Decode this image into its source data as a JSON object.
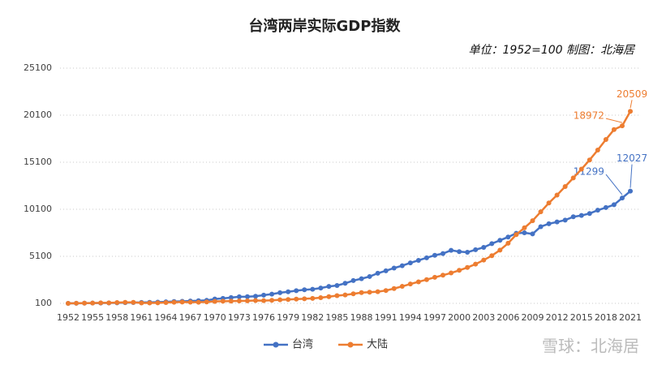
{
  "chart_data": {
    "type": "line",
    "title": "台湾两岸实际GDP指数",
    "subtitle": "单位：1952=100  制图：北海居",
    "watermark": "雪球：北海居",
    "x": [
      1952,
      1953,
      1954,
      1955,
      1956,
      1957,
      1958,
      1959,
      1960,
      1961,
      1962,
      1963,
      1964,
      1965,
      1966,
      1967,
      1968,
      1969,
      1970,
      1971,
      1972,
      1973,
      1974,
      1975,
      1976,
      1977,
      1978,
      1979,
      1980,
      1981,
      1982,
      1983,
      1984,
      1985,
      1986,
      1987,
      1988,
      1989,
      1990,
      1991,
      1992,
      1993,
      1994,
      1995,
      1996,
      1997,
      1998,
      1999,
      2000,
      2001,
      2002,
      2003,
      2004,
      2005,
      2006,
      2007,
      2008,
      2009,
      2010,
      2011,
      2012,
      2013,
      2014,
      2015,
      2016,
      2017,
      2018,
      2019,
      2020,
      2021
    ],
    "xlim": [
      1952,
      2021
    ],
    "xticks": [
      1952,
      1955,
      1958,
      1961,
      1964,
      1967,
      1970,
      1973,
      1976,
      1979,
      1982,
      1985,
      1988,
      1991,
      1994,
      1997,
      2000,
      2003,
      2006,
      2009,
      2012,
      2015,
      2018,
      2021
    ],
    "ylim": [
      100,
      25100
    ],
    "yticks": [
      100,
      5100,
      10100,
      15100,
      20100,
      25100
    ],
    "grid": true,
    "labeled_x": [
      2020,
      2021
    ],
    "series": [
      {
        "name": "台湾",
        "color": "#4472c4",
        "values": [
          100,
          109,
          120,
          130,
          137,
          147,
          157,
          171,
          182,
          195,
          211,
          231,
          260,
          290,
          316,
          351,
          383,
          418,
          560,
          630,
          710,
          800,
          810,
          850,
          970,
          1080,
          1230,
          1330,
          1450,
          1540,
          1600,
          1730,
          1900,
          2000,
          2230,
          2520,
          2720,
          2950,
          3300,
          3560,
          3850,
          4100,
          4400,
          4670,
          4940,
          5210,
          5390,
          5740,
          5600,
          5530,
          5800,
          6050,
          6450,
          6800,
          7150,
          7550,
          7600,
          7480,
          8250,
          8560,
          8750,
          8950,
          9300,
          9440,
          9650,
          10000,
          10280,
          10580,
          11299,
          12027
        ]
      },
      {
        "name": "大陆",
        "color": "#ed7d31",
        "values": [
          100,
          116,
          121,
          129,
          149,
          156,
          189,
          205,
          204,
          148,
          140,
          155,
          183,
          214,
          237,
          224,
          215,
          252,
          302,
          323,
          335,
          362,
          370,
          402,
          395,
          425,
          475,
          511,
          551,
          580,
          633,
          702,
          808,
          917,
          998,
          1114,
          1240,
          1290,
          1340,
          1463,
          1672,
          1905,
          2154,
          2389,
          2624,
          2868,
          3093,
          3330,
          3612,
          3912,
          4268,
          4696,
          5169,
          5757,
          6488,
          7410,
          8125,
          8885,
          9827,
          10765,
          11610,
          12513,
          13428,
          14364,
          15340,
          16393,
          17510,
          18570,
          18972,
          20509
        ]
      }
    ]
  }
}
